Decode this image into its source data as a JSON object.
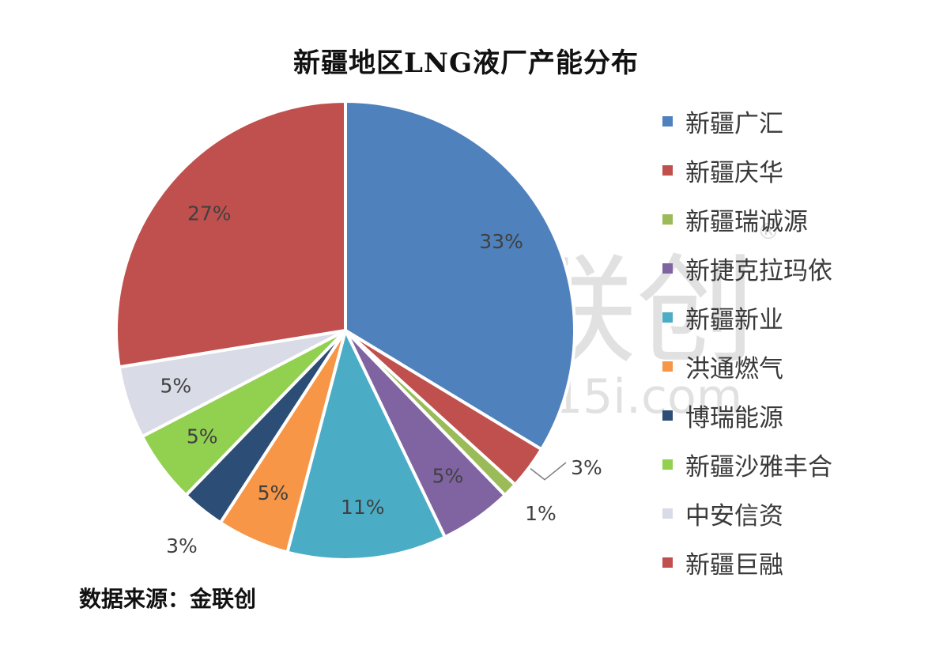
{
  "watermark": {
    "logo_text": "金联创",
    "url_text": "www.315i.com",
    "registered_mark": "®",
    "color": "#d9d9d9"
  },
  "chart_data": {
    "type": "pie",
    "title": "新疆地区LNG液厂产能分布",
    "start_angle_deg": 0,
    "direction": "clockwise",
    "legend_position": "right",
    "categories": [
      "新疆广汇",
      "新疆庆华",
      "新疆瑞诚源",
      "新捷克拉玛依",
      "新疆新业",
      "洪通燃气",
      "博瑞能源",
      "新疆沙雅丰合",
      "中安信资",
      "新疆巨融"
    ],
    "colors": [
      "#4f81bd",
      "#c0504d",
      "#9bbb59",
      "#8064a2",
      "#4bacc6",
      "#f79646",
      "#2c4d75",
      "#92d050",
      "#d9dbe6",
      "#c0504d"
    ],
    "values": [
      33,
      3,
      1,
      5,
      11,
      5,
      3,
      5,
      5,
      27
    ],
    "data_labels": [
      "33%",
      "3%",
      "1%",
      "5%",
      "11%",
      "5%",
      "3%",
      "5%",
      "5%",
      "27%"
    ]
  },
  "source_note": "数据来源：金联创"
}
